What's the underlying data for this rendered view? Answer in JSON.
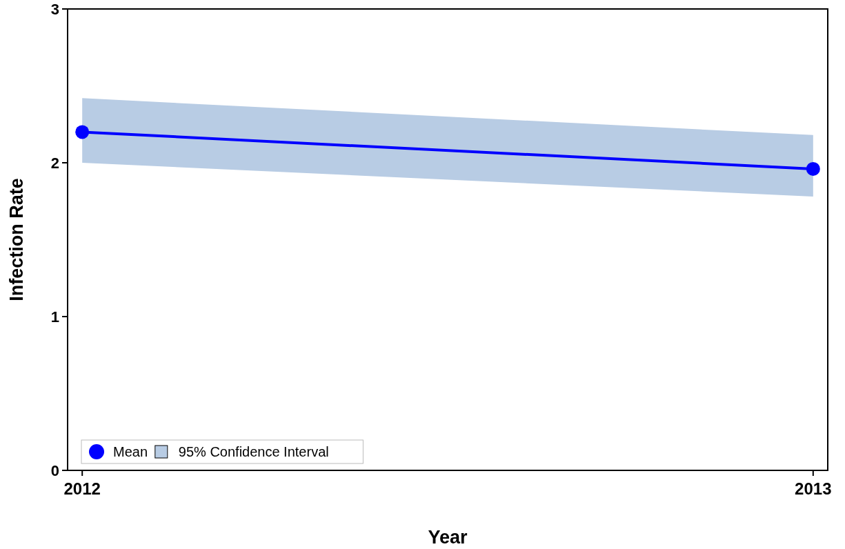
{
  "chart_data": {
    "type": "line",
    "xlabel": "Year",
    "ylabel": "Infection Rate",
    "x": [
      2012,
      2013
    ],
    "xlim": [
      2011.98,
      2013.02
    ],
    "xticks": [
      2012,
      2013
    ],
    "ylim": [
      0,
      3
    ],
    "yticks": [
      0,
      1,
      2,
      3
    ],
    "grid": false,
    "legend": "bottom left",
    "marker": "circle",
    "line_style": "solid",
    "annotations": [
      "95% Confidence Interval"
    ],
    "series": [
      {
        "name": "Mean",
        "color": "#0000ff",
        "values": [
          2.2,
          1.96
        ],
        "lower": [
          2.0,
          1.78
        ],
        "upper": [
          2.42,
          2.18
        ]
      }
    ]
  }
}
